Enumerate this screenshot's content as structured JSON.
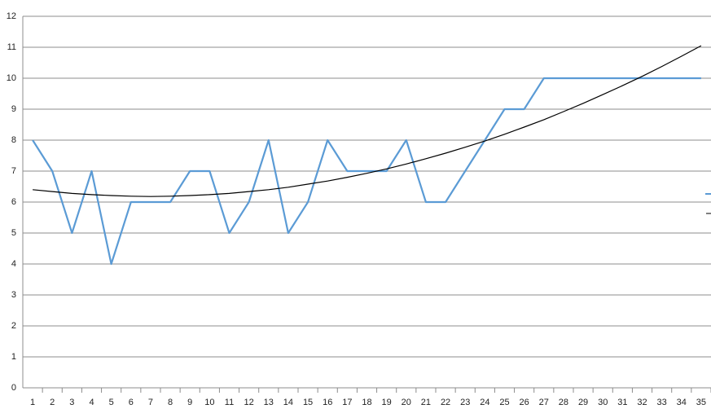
{
  "chart_data": {
    "type": "line",
    "categories": [
      1,
      2,
      3,
      4,
      5,
      6,
      7,
      8,
      9,
      10,
      11,
      12,
      13,
      14,
      15,
      16,
      17,
      18,
      19,
      20,
      21,
      22,
      23,
      24,
      25,
      26,
      27,
      28,
      29,
      30,
      31,
      32,
      33,
      34,
      35
    ],
    "series": [
      {
        "color": "#5b9bd5",
        "values": [
          8,
          7,
          5,
          7,
          4,
          6,
          6,
          6,
          7,
          7,
          5,
          6,
          8,
          5,
          6,
          8,
          7,
          7,
          7,
          8,
          6,
          6,
          7,
          8,
          9,
          9,
          10,
          10,
          10,
          10,
          10,
          10,
          10,
          10,
          10
        ]
      },
      {
        "color": "#000000",
        "values": [
          6.4,
          6.34,
          6.28,
          6.24,
          6.21,
          6.19,
          6.18,
          6.19,
          6.21,
          6.24,
          6.28,
          6.34,
          6.4,
          6.48,
          6.58,
          6.68,
          6.8,
          6.93,
          7.07,
          7.23,
          7.4,
          7.58,
          7.77,
          7.97,
          8.19,
          8.42,
          8.66,
          8.92,
          9.19,
          9.47,
          9.76,
          10.06,
          10.38,
          10.71,
          11.05
        ]
      }
    ],
    "ylim": [
      0,
      12
    ],
    "yticks": [
      0,
      1,
      2,
      3,
      4,
      5,
      6,
      7,
      8,
      9,
      10,
      11,
      12
    ],
    "grid": true
  }
}
